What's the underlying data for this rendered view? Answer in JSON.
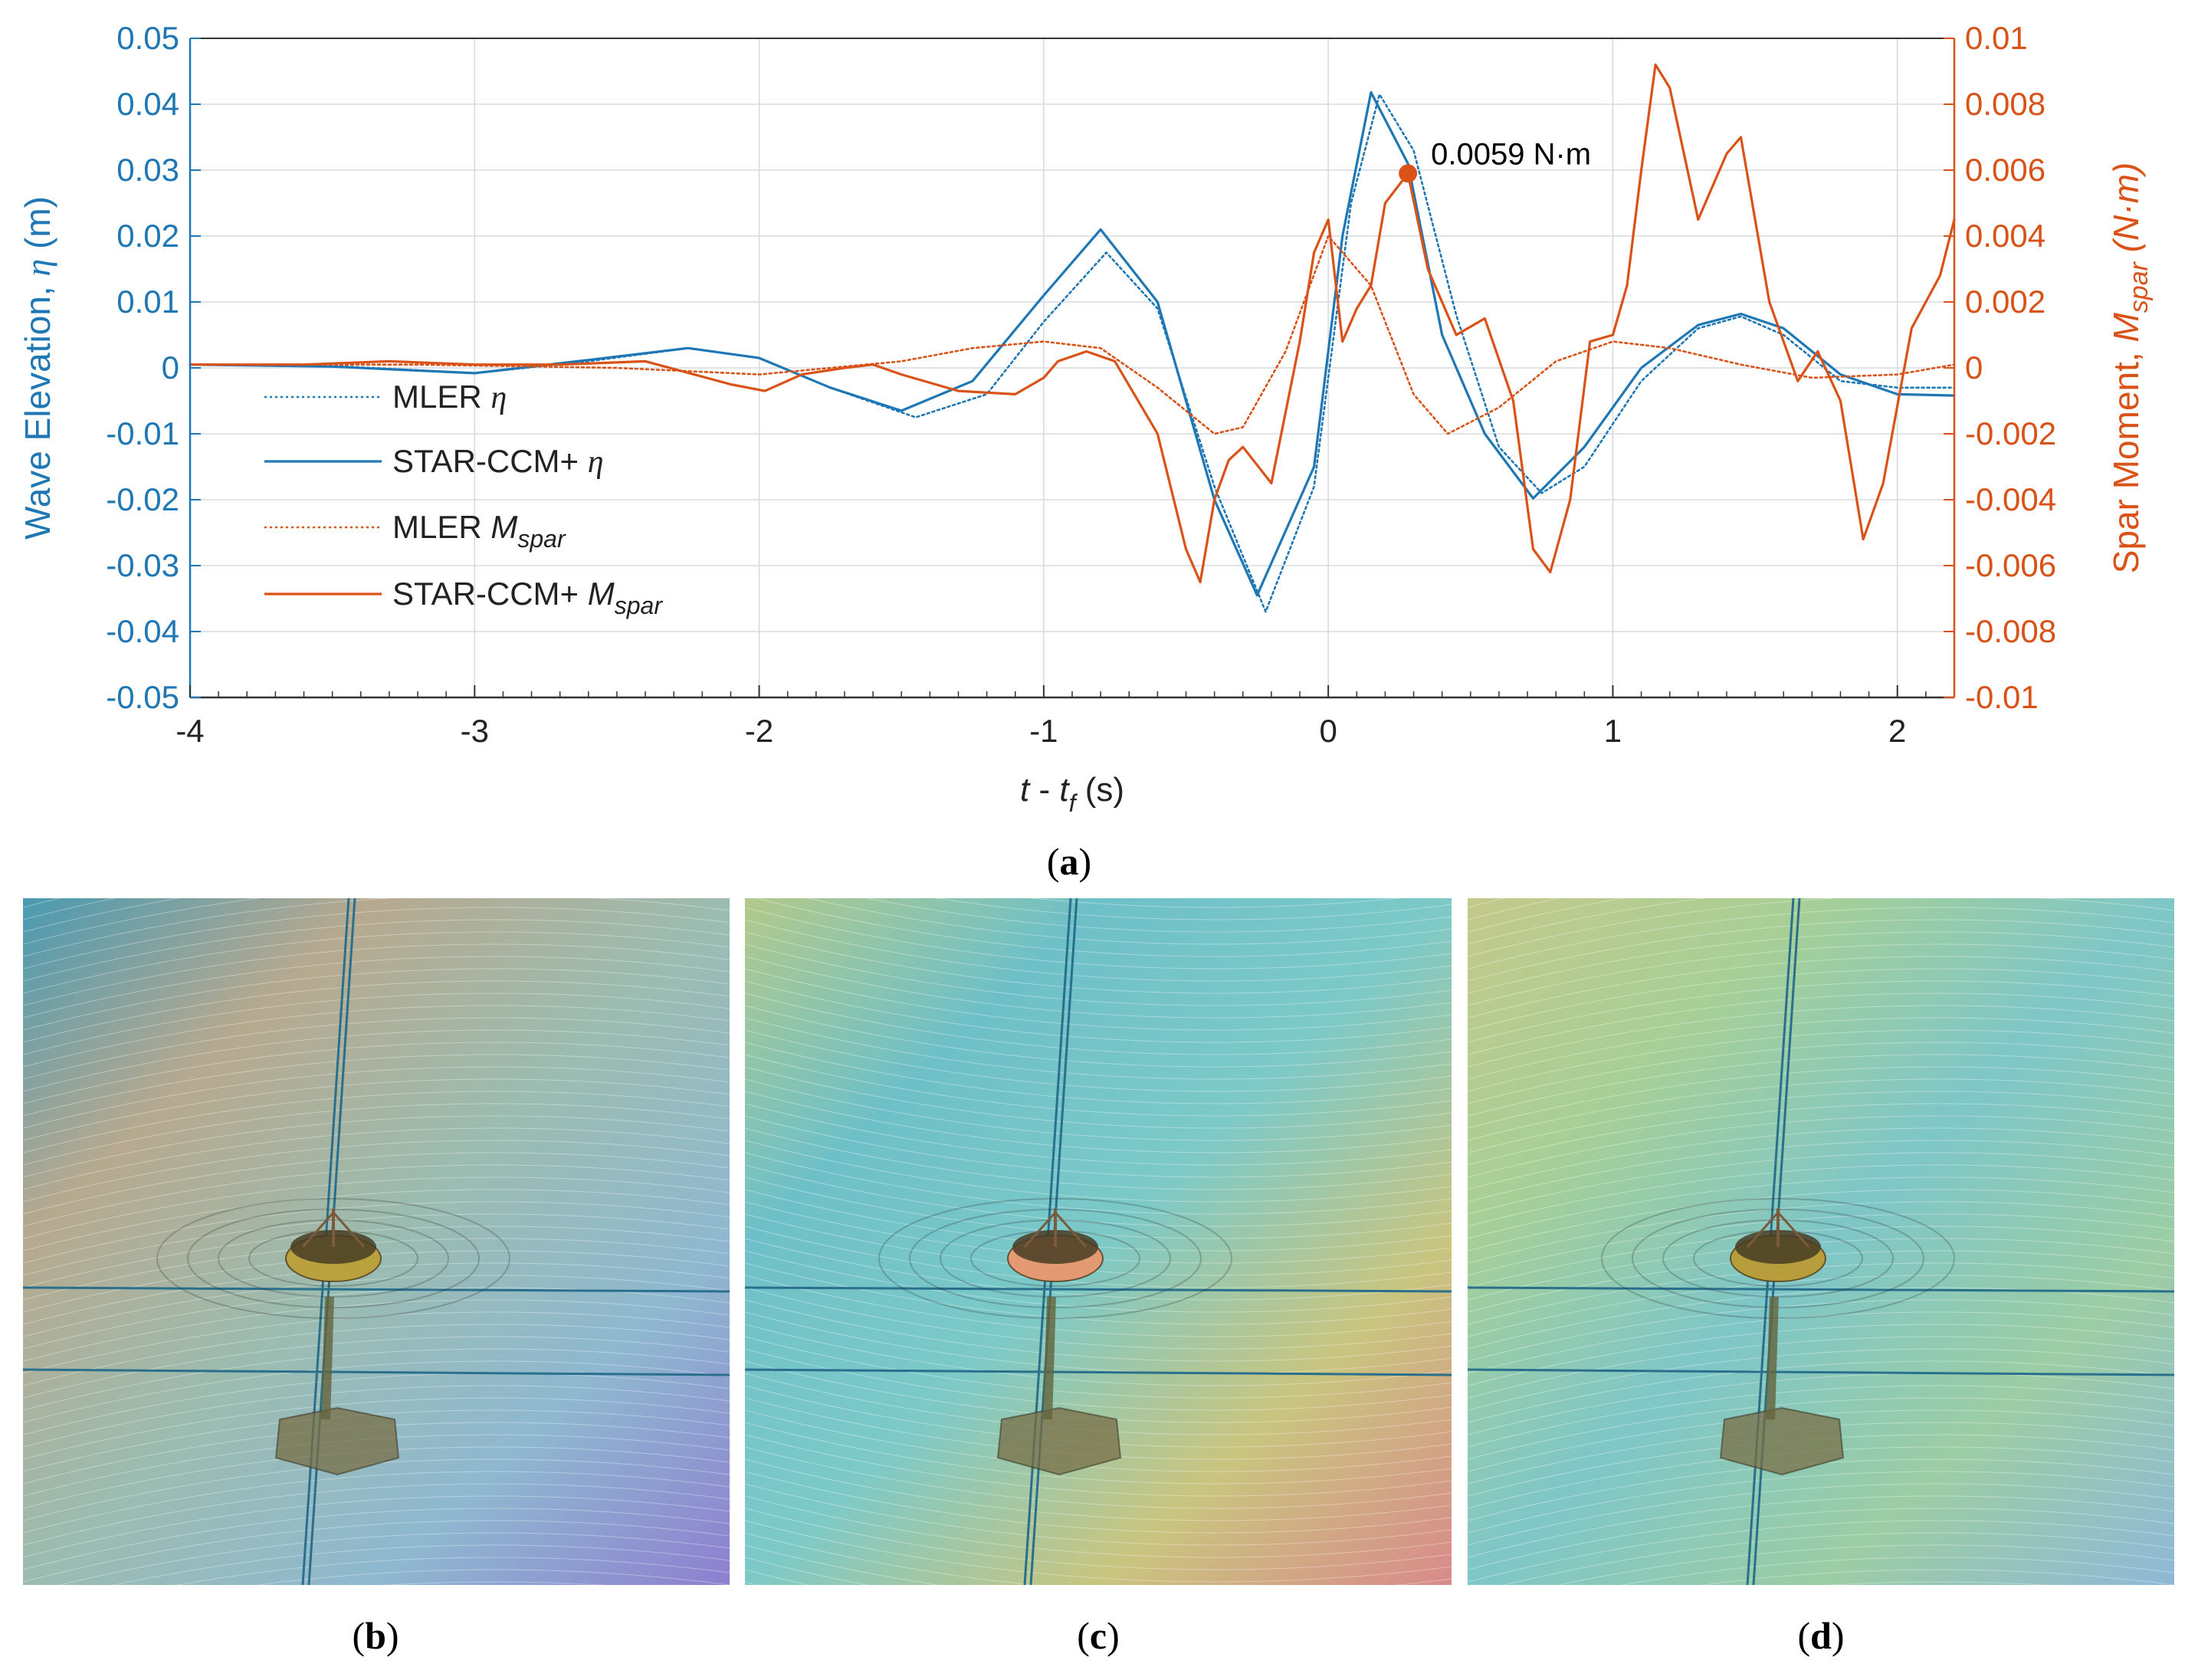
{
  "chart_data": {
    "type": "line",
    "xlabel": {
      "t": "t",
      "dash": " - ",
      "tf": "t",
      "sub": "f",
      "unit": " (s)"
    },
    "ylabel_left": {
      "main": "Wave Elevation, ",
      "sym": "η",
      "unit": " (m)"
    },
    "ylabel_right": {
      "main": "Spar Moment, ",
      "sym": "M",
      "sub": "spar",
      "unit": " (N·m)"
    },
    "xlim": [
      -4,
      2.2
    ],
    "ylim_left": [
      -0.05,
      0.05
    ],
    "ylim_right": [
      -0.01,
      0.01
    ],
    "x_ticks": [
      "-4",
      "-3",
      "-2",
      "-1",
      "0",
      "1",
      "2"
    ],
    "y_left_ticks": [
      "-0.05",
      "-0.04",
      "-0.03",
      "-0.02",
      "-0.01",
      "0",
      "0.01",
      "0.02",
      "0.03",
      "0.04",
      "0.05"
    ],
    "y_right_ticks": [
      "-0.01",
      "-0.008",
      "-0.006",
      "-0.004",
      "-0.002",
      "0",
      "0.002",
      "0.004",
      "0.006",
      "0.008",
      "0.01"
    ],
    "grid": true,
    "legend_position": "left",
    "colors": {
      "blue": "#1f77b4",
      "orange": "#d95319"
    },
    "series": [
      {
        "name": "MLER η",
        "label": "MLER ",
        "sym": "η",
        "sub": "",
        "axis": "left",
        "style": "dotted",
        "x": [
          -4,
          -3.5,
          -3,
          -2.6,
          -2.25,
          -2,
          -1.75,
          -1.45,
          -1.2,
          -1,
          -0.78,
          -0.6,
          -0.4,
          -0.22,
          -0.05,
          0.08,
          0.18,
          0.3,
          0.45,
          0.6,
          0.75,
          0.9,
          1.1,
          1.3,
          1.45,
          1.6,
          1.8,
          2.0,
          2.2
        ],
        "y": [
          0.0005,
          0.0003,
          -0.0008,
          0.001,
          0.003,
          0.0015,
          -0.003,
          -0.0075,
          -0.004,
          0.007,
          0.0175,
          0.009,
          -0.018,
          -0.037,
          -0.018,
          0.025,
          0.0415,
          0.033,
          0.008,
          -0.012,
          -0.019,
          -0.015,
          -0.002,
          0.006,
          0.0078,
          0.005,
          -0.002,
          -0.003,
          -0.003
        ]
      },
      {
        "name": "STAR-CCM+ η",
        "label": "STAR-CCM+ ",
        "sym": "η",
        "sub": "",
        "axis": "left",
        "style": "solid",
        "x": [
          -4,
          -3.5,
          -3,
          -2.6,
          -2.25,
          -2,
          -1.75,
          -1.5,
          -1.25,
          -1,
          -0.8,
          -0.6,
          -0.4,
          -0.25,
          -0.05,
          0.05,
          0.15,
          0.28,
          0.4,
          0.55,
          0.72,
          0.9,
          1.1,
          1.3,
          1.45,
          1.6,
          1.8,
          2.0,
          2.2
        ],
        "y": [
          0.0005,
          0.0002,
          -0.0008,
          0.0012,
          0.003,
          0.0015,
          -0.003,
          -0.0065,
          -0.002,
          0.011,
          0.021,
          0.01,
          -0.02,
          -0.0345,
          -0.015,
          0.02,
          0.0418,
          0.031,
          0.005,
          -0.01,
          -0.0198,
          -0.012,
          0.0,
          0.0065,
          0.0082,
          0.006,
          -0.001,
          -0.004,
          -0.0042
        ]
      },
      {
        "name": "MLER Mspar",
        "label": "MLER ",
        "sym": "M",
        "sub": "spar",
        "axis": "right",
        "style": "dotted",
        "x": [
          -4,
          -3.2,
          -2.5,
          -2,
          -1.5,
          -1.25,
          -1,
          -0.8,
          -0.6,
          -0.4,
          -0.3,
          -0.15,
          0,
          0.15,
          0.3,
          0.42,
          0.6,
          0.8,
          1,
          1.2,
          1.45,
          1.7,
          2.0,
          2.2
        ],
        "y": [
          0.0001,
          0.0001,
          0.0,
          -0.0002,
          0.0002,
          0.0006,
          0.0008,
          0.0006,
          -0.0006,
          -0.002,
          -0.0018,
          0.0005,
          0.004,
          0.0025,
          -0.0008,
          -0.002,
          -0.0012,
          0.0002,
          0.0008,
          0.0006,
          0.0001,
          -0.0003,
          -0.0002,
          0.0001
        ]
      },
      {
        "name": "STAR-CCM+ Mspar",
        "label": "STAR-CCM+ ",
        "sym": "M",
        "sub": "spar",
        "axis": "right",
        "style": "solid",
        "x": [
          -4,
          -3.6,
          -3.3,
          -3,
          -2.7,
          -2.4,
          -2.1,
          -1.98,
          -1.85,
          -1.7,
          -1.6,
          -1.5,
          -1.3,
          -1.1,
          -1.0,
          -0.95,
          -0.85,
          -0.75,
          -0.6,
          -0.5,
          -0.45,
          -0.4,
          -0.35,
          -0.3,
          -0.2,
          -0.1,
          -0.05,
          0.0,
          0.05,
          0.1,
          0.15,
          0.2,
          0.28,
          0.35,
          0.45,
          0.55,
          0.65,
          0.72,
          0.78,
          0.85,
          0.92,
          1.0,
          1.05,
          1.1,
          1.15,
          1.2,
          1.3,
          1.4,
          1.45,
          1.55,
          1.65,
          1.72,
          1.8,
          1.88,
          1.95,
          2.05,
          2.15,
          2.2
        ],
        "y": [
          0.0001,
          0.0001,
          0.0002,
          0.0001,
          0.0001,
          0.0002,
          -0.0005,
          -0.0007,
          -0.0002,
          0.0,
          0.0001,
          -0.0002,
          -0.0007,
          -0.0008,
          -0.0003,
          0.0002,
          0.0005,
          0.0002,
          -0.002,
          -0.0055,
          -0.0065,
          -0.004,
          -0.0028,
          -0.0024,
          -0.0035,
          0.0008,
          0.0035,
          0.0045,
          0.0008,
          0.0018,
          0.0025,
          0.005,
          0.0059,
          0.003,
          0.001,
          0.0015,
          -0.001,
          -0.0055,
          -0.0062,
          -0.004,
          0.0008,
          0.001,
          0.0025,
          0.006,
          0.0092,
          0.0085,
          0.0045,
          0.0065,
          0.007,
          0.002,
          -0.0004,
          0.0005,
          -0.001,
          -0.0052,
          -0.0035,
          0.0012,
          0.0028,
          0.0045
        ]
      }
    ],
    "annotation": {
      "text": "0.0059 N·m",
      "x": 0.28,
      "y": 0.0059,
      "axis": "right"
    }
  },
  "panels": {
    "a": "(a)",
    "b": "(b)",
    "c": "(c)",
    "d": "(d)"
  },
  "photo_colors": {
    "b": [
      "#4a9ab2",
      "#b7a98f",
      "#9bbcb0",
      "#8fb8d0",
      "#8d7fd0"
    ],
    "c": [
      "#b3c98a",
      "#6ec0c8",
      "#7cc9c8",
      "#c9c57f",
      "#d98a8a"
    ],
    "d": [
      "#c4c98a",
      "#a6cf97",
      "#7ec6c8",
      "#9ccda4",
      "#8fb8d8"
    ]
  }
}
